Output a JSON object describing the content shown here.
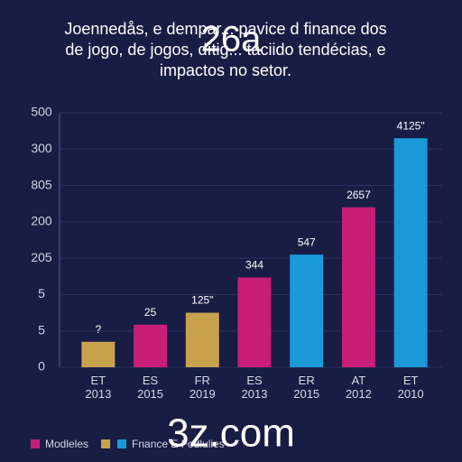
{
  "chart_data": {
    "type": "bar",
    "title": [
      "Joennedås, e dempar... pavice d finance dos",
      "de jogo, de jogos, dítig... taciido tendécias, e",
      "impactos no setor."
    ],
    "categories": [
      "ET\n2013",
      "ES\n2015",
      "FR\n2019",
      "ES\n2013",
      "ER\n2015",
      "AT\n2012",
      "ET\n2010"
    ],
    "values": [
      0.7,
      1.17,
      1.5,
      2.47,
      3.1,
      4.4,
      6.3
    ],
    "colors": [
      "#c9a24e",
      "#c81e78",
      "#c9a24e",
      "#c81e78",
      "#1a9ad8",
      "#c81e78",
      "#1a9ad8"
    ],
    "annotations": [
      "?",
      "25",
      "125\"",
      "344",
      "547",
      "2657",
      "4125\""
    ],
    "ylim": [
      0,
      7
    ],
    "yticks": [
      {
        "value": 0,
        "label": "0"
      },
      {
        "value": 1,
        "label": "5"
      },
      {
        "value": 2,
        "label": "5"
      },
      {
        "value": 3,
        "label": "205"
      },
      {
        "value": 4,
        "label": "200"
      },
      {
        "value": 5,
        "label": "805"
      },
      {
        "value": 6,
        "label": "300"
      },
      {
        "value": 7,
        "label": "500"
      }
    ],
    "grid": true,
    "legend": [
      {
        "name": "Modleles",
        "color": "#c81e78"
      },
      {
        "color": "#c9a24e"
      },
      {
        "name": "Fnance E Fodlulies",
        "color": "#1a9ad8"
      }
    ],
    "watermarks": [
      "26a",
      "3z.com"
    ]
  }
}
